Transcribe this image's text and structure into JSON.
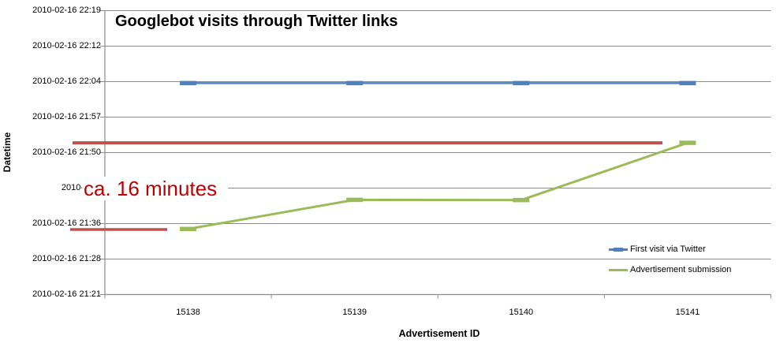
{
  "chart": {
    "title": "Googlebot visits through Twitter links",
    "x_axis_title": "Advertisement ID",
    "y_axis_title": "Datetime"
  },
  "chart_data": {
    "type": "line",
    "title": "Googlebot visits through Twitter links",
    "xlabel": "Advertisement ID",
    "ylabel": "Datetime",
    "categories": [
      "15138",
      "15139",
      "15140",
      "15141"
    ],
    "y_tick_labels": [
      "2010-02-16 22:19",
      "2010-02-16 22:12",
      "2010-02-16 22:04",
      "2010-02-16 21:57",
      "2010-02-16 21:50",
      "2010-02-1",
      "2010-02-16 21:36",
      "2010-02-16 21:28",
      "2010-02-16 21:21"
    ],
    "y_tick_label_note": "tick for 21:43 is truncated to 2010-02-1 because the annotation covers it",
    "y_range_minutes": [
      0,
      58
    ],
    "y_range_origin": "minutes after 2010-02-16 21:21",
    "grid": true,
    "grid_color": "#8C8C8C",
    "axis_color": "#8C8C8C",
    "legend_position": "right-lower",
    "series": [
      {
        "name": "First visit via Twitter",
        "color": "#4F81BD",
        "marker": "dash",
        "approx_times": [
          "2010-02-16 22:04",
          "2010-02-16 22:04",
          "2010-02-16 22:04",
          "2010-02-16 22:04"
        ],
        "y_minutes": [
          43.2,
          43.2,
          43.2,
          43.2
        ]
      },
      {
        "name": "Advertisement submission",
        "color": "#9BBB59",
        "marker": "dash",
        "approx_times": [
          "2010-02-16 21:35",
          "2010-02-16 21:41",
          "2010-02-16 21:41",
          "2010-02-16 21:52"
        ],
        "y_minutes": [
          13.4,
          19.35,
          19.3,
          31.0
        ]
      }
    ],
    "annotation": {
      "label": "ca. 16 minutes",
      "color": "#C00000",
      "line_color": "#C0504D",
      "ref_lines": [
        {
          "y_minutes": 31.0,
          "x_from": 92,
          "x_to": 840
        },
        {
          "y_minutes": 13.3,
          "x_from": 89,
          "x_to": 212
        }
      ]
    }
  }
}
